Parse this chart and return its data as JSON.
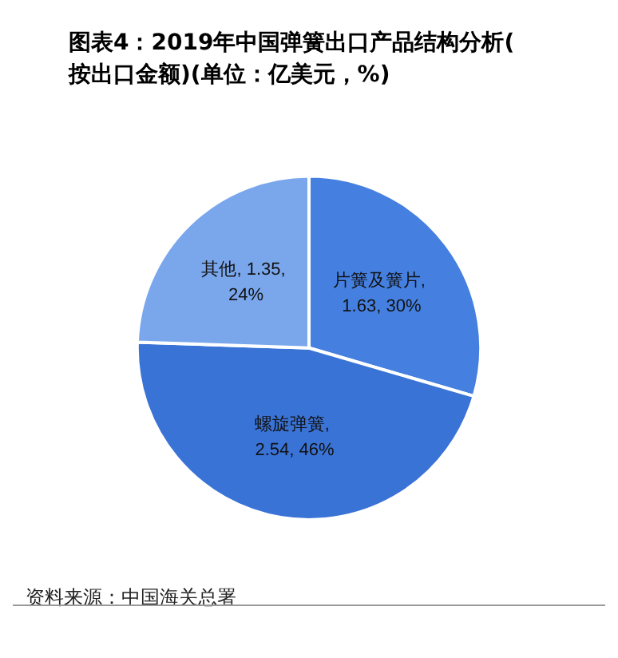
{
  "chart_data": {
    "type": "pie",
    "title": "图表4：2019年中国弹簧出口产品结构分析(按出口金额)(单位：亿美元，%)",
    "categories": [
      "片簧及簧片",
      "螺旋弹簧",
      "其他"
    ],
    "values": [
      1.63,
      2.54,
      1.35
    ],
    "colors": [
      "#4580e0",
      "#3a73d6",
      "#7aa7ec"
    ],
    "value_labels": [
      ", 1.63, 30%",
      ", 2.54, 46%",
      ", 1.35, 24%"
    ],
    "annotations": [
      "资料来源：中国海关总署"
    ],
    "legend": false
  }
}
